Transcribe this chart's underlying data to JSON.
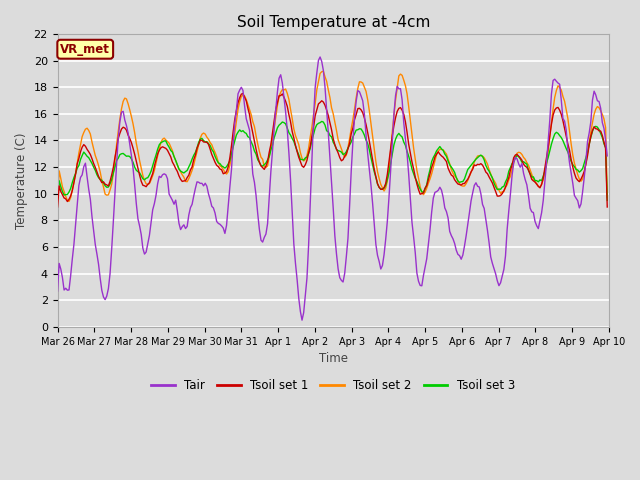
{
  "title": "Soil Temperature at -4cm",
  "xlabel": "Time",
  "ylabel": "Temperature (C)",
  "ylim": [
    0,
    22
  ],
  "yticks": [
    0,
    2,
    4,
    6,
    8,
    10,
    12,
    14,
    16,
    18,
    20,
    22
  ],
  "background_color": "#dcdcdc",
  "plot_bg_color": "#dcdcdc",
  "grid_color": "#ffffff",
  "annotation_text": "VR_met",
  "annotation_bg": "#ffffaa",
  "annotation_border": "#8B0000",
  "line_colors": {
    "Tair": "#9932CC",
    "Tsoil1": "#cc0000",
    "Tsoil2": "#ff8800",
    "Tsoil3": "#00cc00"
  },
  "legend_labels": [
    "Tair",
    "Tsoil set 1",
    "Tsoil set 2",
    "Tsoil set 3"
  ],
  "date_labels": [
    "Mar 26",
    "Mar 27",
    "Mar 28",
    "Mar 29",
    "Mar 30",
    "Mar 31",
    "Apr 1",
    "Apr 2",
    "Apr 3",
    "Apr 4",
    "Apr 5",
    "Apr 6",
    "Apr 7",
    "Apr 8",
    "Apr 9",
    "Apr 10"
  ],
  "n_points": 336
}
